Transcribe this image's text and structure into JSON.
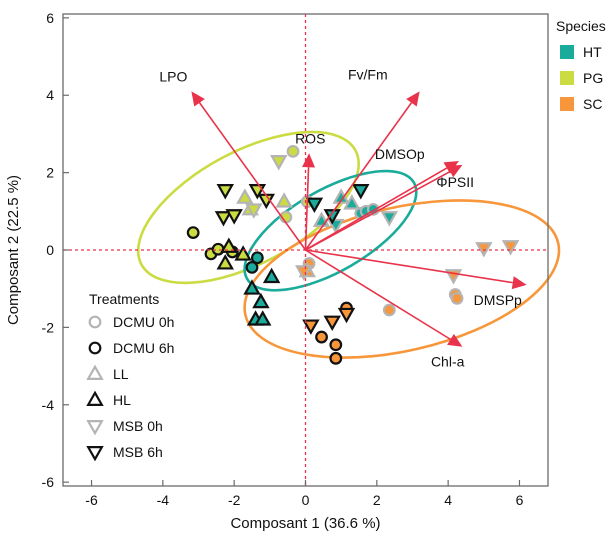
{
  "chart_data": {
    "type": "scatter",
    "xlabel": "Composant 1  (36.6 %)",
    "ylabel": "Composant 2  (22.5 %)",
    "xlim": [
      -6.8,
      6.8
    ],
    "ylim": [
      -6.1,
      6.1
    ],
    "x_ticks": [
      -6,
      -4,
      -2,
      0,
      2,
      4,
      6
    ],
    "y_ticks": [
      -6,
      -4,
      -2,
      0,
      2,
      4,
      6
    ],
    "grid": false,
    "colors": {
      "HT": "#1aab9b",
      "PG": "#cbdb42",
      "SC": "#f7963a",
      "arrow": "#e8334a",
      "zero": "#e8334a",
      "grey": "#b4b4b4",
      "dark": "#111111"
    },
    "species_legend": {
      "title": "Species",
      "position": "top-right-outside",
      "items": [
        {
          "label": "HT",
          "color": "#1aab9b"
        },
        {
          "label": "PG",
          "color": "#cbdb42"
        },
        {
          "label": "SC",
          "color": "#f7963a"
        }
      ]
    },
    "treatment_legend": {
      "title": "Treatments",
      "position": "bottom-left",
      "items": [
        {
          "label": "DCMU 0h",
          "shape": "circle",
          "style": "grey"
        },
        {
          "label": "DCMU 6h",
          "shape": "circle",
          "style": "dark"
        },
        {
          "label": "LL",
          "shape": "triangle-up",
          "style": "grey"
        },
        {
          "label": "HL",
          "shape": "triangle-up",
          "style": "dark"
        },
        {
          "label": "MSB 0h",
          "shape": "triangle-down",
          "style": "grey"
        },
        {
          "label": "MSB 6h",
          "shape": "triangle-down",
          "style": "dark"
        }
      ]
    },
    "loadings": [
      {
        "label": "LPO",
        "x": -3.2,
        "y": 4.1
      },
      {
        "label": "ROS",
        "x": 0.1,
        "y": 2.5
      },
      {
        "label": "Fv/Fm",
        "x": 3.2,
        "y": 4.1
      },
      {
        "label": "DMSOp",
        "x": 4.3,
        "y": 2.3
      },
      {
        "label": "ΦPSII",
        "x": 4.4,
        "y": 2.2
      },
      {
        "label": "DMSPp",
        "x": 6.2,
        "y": -0.9
      },
      {
        "label": "Chl-a",
        "x": 4.4,
        "y": -2.5
      }
    ],
    "ellipses": [
      {
        "species": "PG",
        "cx": -1.6,
        "cy": 1.1,
        "rx": 3.4,
        "ry": 1.45,
        "angle_deg": 28
      },
      {
        "species": "HT",
        "cx": 0.7,
        "cy": 0.5,
        "rx": 2.7,
        "ry": 1.05,
        "angle_deg": 30
      },
      {
        "species": "SC",
        "cx": 2.7,
        "cy": -0.75,
        "rx": 4.5,
        "ry": 1.85,
        "angle_deg": 13
      }
    ],
    "points": [
      {
        "species": "PG",
        "treatment": "DCMU 6h",
        "x": -3.15,
        "y": 0.45
      },
      {
        "species": "PG",
        "treatment": "DCMU 6h",
        "x": -2.65,
        "y": -0.1
      },
      {
        "species": "PG",
        "treatment": "DCMU 6h",
        "x": -2.45,
        "y": 0.02
      },
      {
        "species": "PG",
        "treatment": "DCMU 6h",
        "x": -2.05,
        "y": -0.05
      },
      {
        "species": "PG",
        "treatment": "HL",
        "x": -2.15,
        "y": 0.08
      },
      {
        "species": "PG",
        "treatment": "HL",
        "x": -2.25,
        "y": -0.35
      },
      {
        "species": "PG",
        "treatment": "HL",
        "x": -1.75,
        "y": -0.12
      },
      {
        "species": "PG",
        "treatment": "MSB 6h",
        "x": -2.25,
        "y": 1.55
      },
      {
        "species": "PG",
        "treatment": "MSB 6h",
        "x": -2.3,
        "y": 0.85
      },
      {
        "species": "PG",
        "treatment": "MSB 6h",
        "x": -2.0,
        "y": 0.9
      },
      {
        "species": "PG",
        "treatment": "MSB 6h",
        "x": -1.1,
        "y": 1.3
      },
      {
        "species": "PG",
        "treatment": "MSB 6h",
        "x": -1.35,
        "y": 1.55
      },
      {
        "species": "PG",
        "treatment": "DCMU 0h",
        "x": -0.35,
        "y": 2.55
      },
      {
        "species": "PG",
        "treatment": "DCMU 0h",
        "x": -0.55,
        "y": 0.85
      },
      {
        "species": "PG",
        "treatment": "DCMU 0h",
        "x": 0.05,
        "y": 1.25
      },
      {
        "species": "PG",
        "treatment": "LL",
        "x": -1.7,
        "y": 1.35
      },
      {
        "species": "PG",
        "treatment": "LL",
        "x": -1.55,
        "y": 1.05
      },
      {
        "species": "PG",
        "treatment": "LL",
        "x": -0.6,
        "y": 1.25
      },
      {
        "species": "PG",
        "treatment": "MSB 0h",
        "x": -0.75,
        "y": 2.3
      },
      {
        "species": "PG",
        "treatment": "MSB 0h",
        "x": -1.45,
        "y": 1.05
      },
      {
        "species": "HT",
        "treatment": "DCMU 6h",
        "x": -1.5,
        "y": -0.45
      },
      {
        "species": "HT",
        "treatment": "DCMU 6h",
        "x": -1.35,
        "y": -0.2
      },
      {
        "species": "HT",
        "treatment": "HL",
        "x": -1.5,
        "y": -1.0
      },
      {
        "species": "HT",
        "treatment": "HL",
        "x": -0.95,
        "y": -0.7
      },
      {
        "species": "HT",
        "treatment": "HL",
        "x": -1.25,
        "y": -1.35
      },
      {
        "species": "HT",
        "treatment": "HL",
        "x": -1.4,
        "y": -1.8
      },
      {
        "species": "HT",
        "treatment": "HL",
        "x": -1.2,
        "y": -1.8
      },
      {
        "species": "HT",
        "treatment": "MSB 6h",
        "x": 0.25,
        "y": 1.2
      },
      {
        "species": "HT",
        "treatment": "MSB 6h",
        "x": 0.75,
        "y": 0.9
      },
      {
        "species": "HT",
        "treatment": "MSB 6h",
        "x": 1.55,
        "y": 1.55
      },
      {
        "species": "HT",
        "treatment": "DCMU 0h",
        "x": 1.55,
        "y": 0.95
      },
      {
        "species": "HT",
        "treatment": "DCMU 0h",
        "x": 1.7,
        "y": 1.0
      },
      {
        "species": "HT",
        "treatment": "DCMU 0h",
        "x": 1.9,
        "y": 1.05
      },
      {
        "species": "HT",
        "treatment": "LL",
        "x": 1.0,
        "y": 1.35
      },
      {
        "species": "HT",
        "treatment": "LL",
        "x": 1.3,
        "y": 1.2
      },
      {
        "species": "HT",
        "treatment": "LL",
        "x": 0.45,
        "y": 0.75
      },
      {
        "species": "HT",
        "treatment": "MSB 0h",
        "x": 0.85,
        "y": 0.65
      },
      {
        "species": "HT",
        "treatment": "MSB 0h",
        "x": 2.35,
        "y": 0.85
      },
      {
        "species": "SC",
        "treatment": "DCMU 6h",
        "x": 0.45,
        "y": -2.25
      },
      {
        "species": "SC",
        "treatment": "DCMU 6h",
        "x": 0.85,
        "y": -2.45
      },
      {
        "species": "SC",
        "treatment": "DCMU 6h",
        "x": 0.85,
        "y": -2.8
      },
      {
        "species": "SC",
        "treatment": "DCMU 6h",
        "x": 1.15,
        "y": -1.5
      },
      {
        "species": "SC",
        "treatment": "MSB 6h",
        "x": 0.15,
        "y": -1.95
      },
      {
        "species": "SC",
        "treatment": "MSB 6h",
        "x": 0.75,
        "y": -1.85
      },
      {
        "species": "SC",
        "treatment": "MSB 6h",
        "x": 1.15,
        "y": -1.65
      },
      {
        "species": "SC",
        "treatment": "DCMU 0h",
        "x": 2.35,
        "y": -1.55
      },
      {
        "species": "SC",
        "treatment": "DCMU 0h",
        "x": 4.2,
        "y": -1.15
      },
      {
        "species": "SC",
        "treatment": "DCMU 0h",
        "x": 4.25,
        "y": -1.25
      },
      {
        "species": "SC",
        "treatment": "DCMU 0h",
        "x": 0.1,
        "y": -0.35
      },
      {
        "species": "SC",
        "treatment": "LL",
        "x": 0.05,
        "y": -0.55
      },
      {
        "species": "SC",
        "treatment": "MSB 0h",
        "x": 4.15,
        "y": -0.65
      },
      {
        "species": "SC",
        "treatment": "MSB 0h",
        "x": 5.0,
        "y": 0.05
      },
      {
        "species": "SC",
        "treatment": "MSB 0h",
        "x": 5.75,
        "y": 0.1
      },
      {
        "species": "SC",
        "treatment": "MSB 0h",
        "x": -0.05,
        "y": -0.55
      }
    ]
  }
}
